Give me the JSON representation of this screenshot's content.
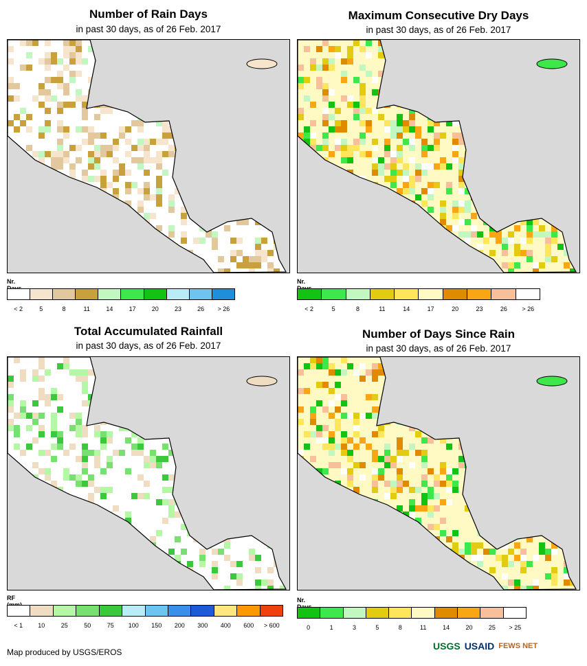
{
  "panels": [
    {
      "title": "Number of Rain Days",
      "subtitle": "in past 30 days, as of 26 Feb. 2017",
      "legend_title": "Nr. Days",
      "legend_colors": [
        "#ffffff",
        "#f6e4cd",
        "#e3c89e",
        "#c9a13c",
        "#c2f7c2",
        "#3ee84a",
        "#14c214",
        "#b8ecf7",
        "#6cc4ef",
        "#1e8fd8"
      ],
      "legend_ticks": [
        "< 2",
        "5",
        "8",
        "11",
        "14",
        "17",
        "20",
        "23",
        "26",
        "> 26"
      ]
    },
    {
      "title": "Maximum Consecutive Dry Days",
      "subtitle": "in past 30 days, as of 26 Feb. 2017",
      "legend_title": "Nr. Days",
      "legend_colors": [
        "#14c214",
        "#3ee84a",
        "#c2f7c2",
        "#e2cb10",
        "#fde65c",
        "#fff9c4",
        "#e08a00",
        "#faa514",
        "#f7c09a",
        "#ffffff"
      ],
      "legend_ticks": [
        "< 2",
        "5",
        "8",
        "11",
        "14",
        "17",
        "20",
        "23",
        "26",
        "> 26"
      ]
    },
    {
      "title": "Total Accumulated Rainfall",
      "subtitle": "in past 30 days, as of 26 Feb. 2017",
      "legend_title": "RF (mm)",
      "legend_colors": [
        "#ffffff",
        "#f0dcc0",
        "#b4f7a4",
        "#78e070",
        "#3cc83c",
        "#b8ecf7",
        "#6cc4ef",
        "#3a8fe8",
        "#1e5ad8",
        "#ffe680",
        "#fa9a00",
        "#f04010"
      ],
      "legend_ticks": [
        "< 1",
        "10",
        "25",
        "50",
        "75",
        "100",
        "150",
        "200",
        "300",
        "400",
        "600",
        "> 600"
      ]
    },
    {
      "title": "Number of Days Since Rain",
      "subtitle": "in past 30 days, as of 26 Feb. 2017",
      "legend_title": "Nr. Days",
      "legend_colors": [
        "#14c214",
        "#3ee84a",
        "#c2f7c2",
        "#e2cb10",
        "#fde65c",
        "#fff9c4",
        "#e08a00",
        "#faa514",
        "#f7c09a",
        "#ffffff"
      ],
      "legend_ticks": [
        "0",
        "1",
        "3",
        "5",
        "8",
        "11",
        "14",
        "20",
        "25",
        "> 25"
      ]
    }
  ],
  "footer": "Map produced by USGS/EROS",
  "logos": [
    "USGS",
    "USAID",
    "FEWS NET"
  ]
}
